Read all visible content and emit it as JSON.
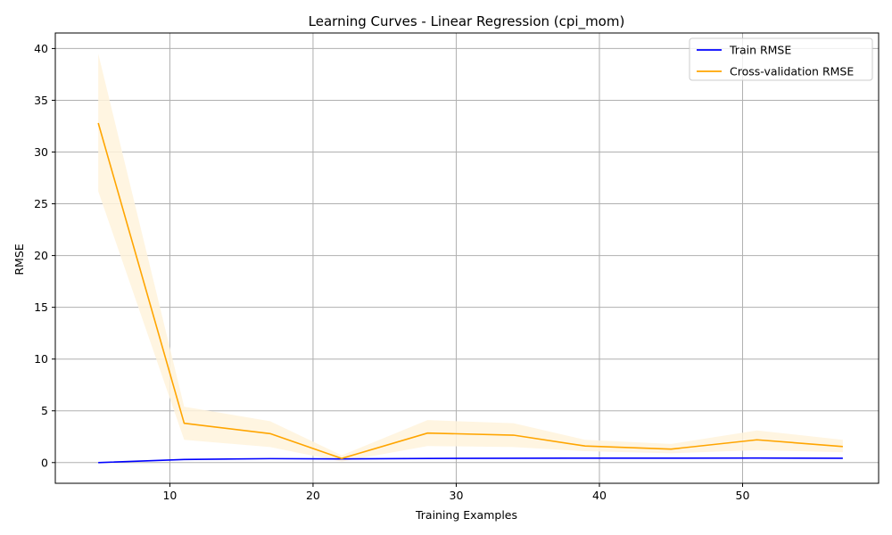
{
  "chart_data": {
    "type": "line",
    "title": "Learning Curves - Linear Regression (cpi_mom)",
    "xlabel": "Training Examples",
    "ylabel": "RMSE",
    "xlim": [
      2,
      59.5
    ],
    "ylim": [
      -2,
      41.5
    ],
    "xticks": [
      10,
      20,
      30,
      40,
      50
    ],
    "yticks": [
      0,
      5,
      10,
      15,
      20,
      25,
      30,
      35,
      40
    ],
    "grid": true,
    "legend_position": "top-right",
    "x": [
      5,
      11,
      17,
      22,
      28,
      34,
      39,
      45,
      51,
      57
    ],
    "series": [
      {
        "name": "Train RMSE",
        "color": "#0000ff",
        "values": [
          0.0,
          0.3,
          0.38,
          0.35,
          0.4,
          0.42,
          0.43,
          0.43,
          0.44,
          0.42
        ],
        "band_lower": [
          0.0,
          0.25,
          0.33,
          0.3,
          0.35,
          0.37,
          0.38,
          0.38,
          0.39,
          0.37
        ],
        "band_upper": [
          0.0,
          0.35,
          0.43,
          0.4,
          0.45,
          0.47,
          0.48,
          0.48,
          0.49,
          0.47
        ]
      },
      {
        "name": "Cross-validation RMSE",
        "color": "#ffa500",
        "band_color": "#fff3dc",
        "values": [
          32.8,
          3.8,
          2.8,
          0.4,
          2.85,
          2.65,
          1.6,
          1.3,
          2.2,
          1.55
        ],
        "band_lower": [
          26.2,
          2.2,
          1.5,
          0.1,
          1.6,
          1.5,
          1.1,
          0.9,
          1.2,
          1.0
        ],
        "band_upper": [
          39.5,
          5.4,
          4.0,
          0.7,
          4.1,
          3.8,
          2.2,
          1.8,
          3.1,
          2.2
        ]
      }
    ]
  }
}
